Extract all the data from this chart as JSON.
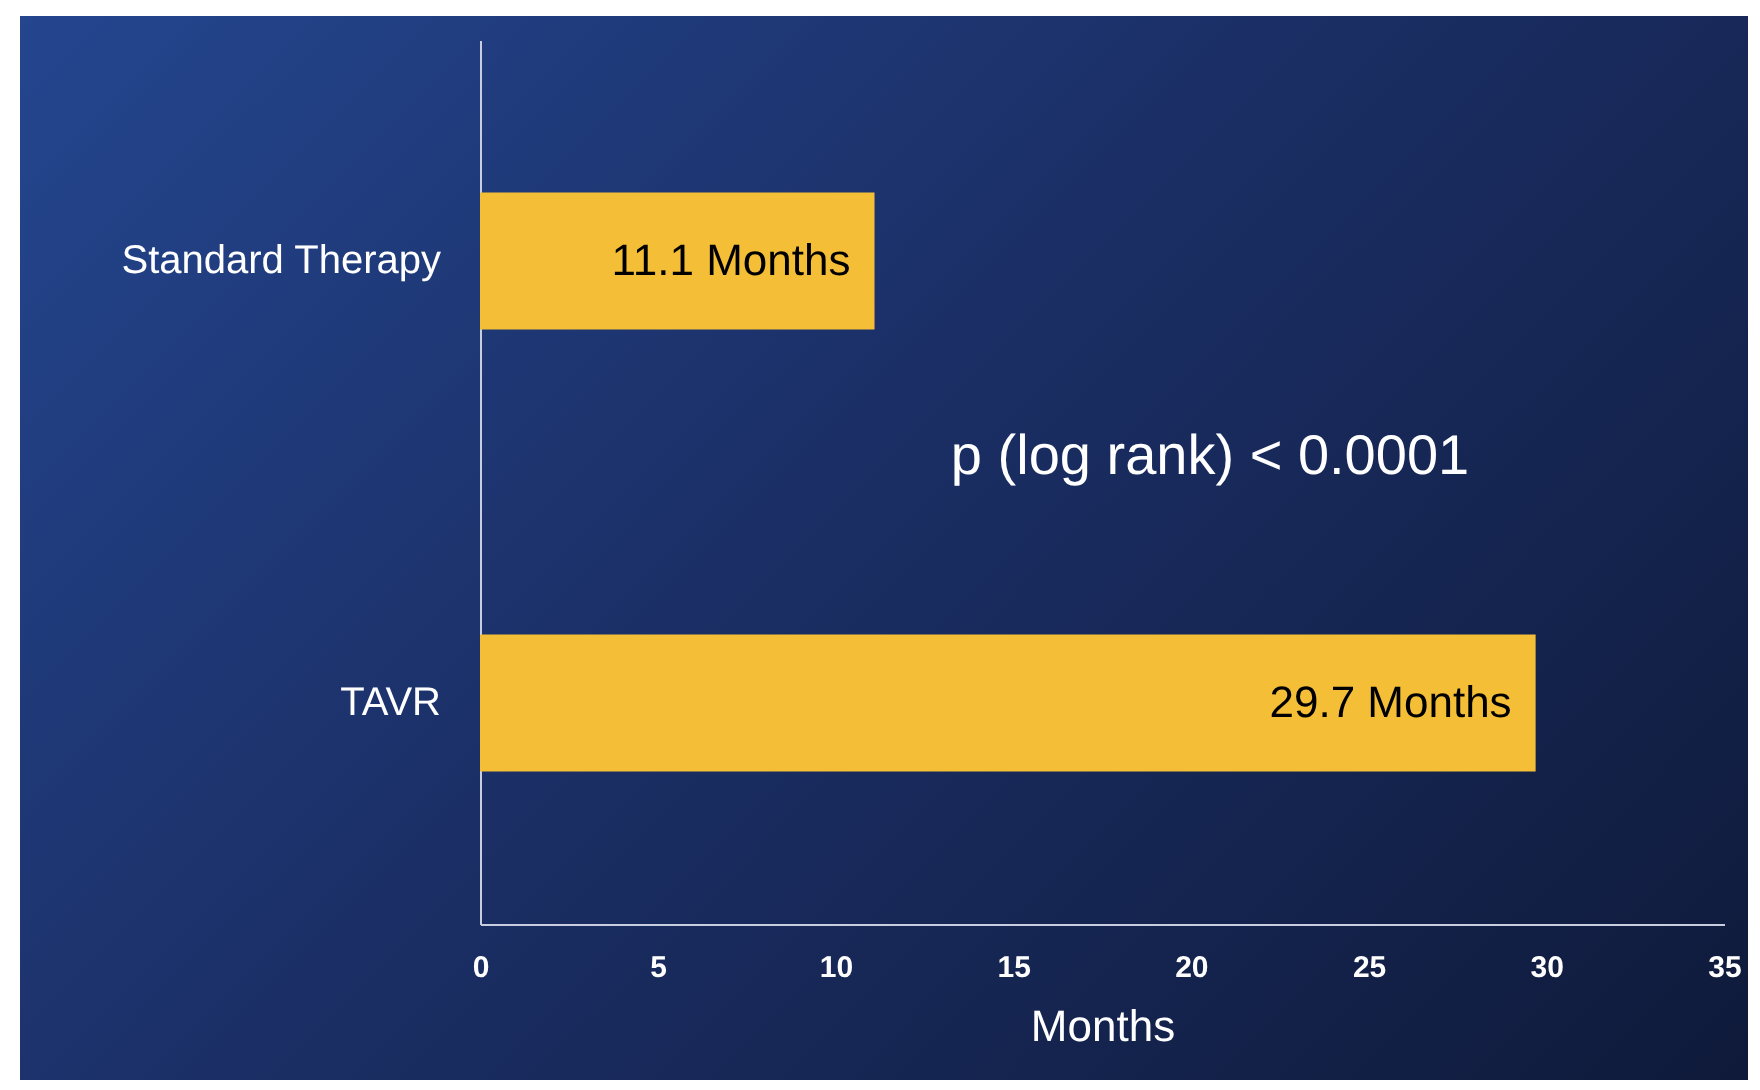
{
  "chart_data": {
    "type": "bar",
    "orientation": "horizontal",
    "xlabel": "Months",
    "categories": [
      "Standard Therapy",
      "TAVR"
    ],
    "values": [
      11.1,
      29.7
    ],
    "value_labels": [
      "11.1 Months",
      "29.7 Months"
    ],
    "color": "#f4bf36",
    "xlim": [
      0,
      35
    ],
    "xticks": [
      0,
      5,
      10,
      15,
      20,
      25,
      30,
      35
    ],
    "grid": false,
    "annotations": [
      "p (log rank) < 0.0001"
    ]
  }
}
